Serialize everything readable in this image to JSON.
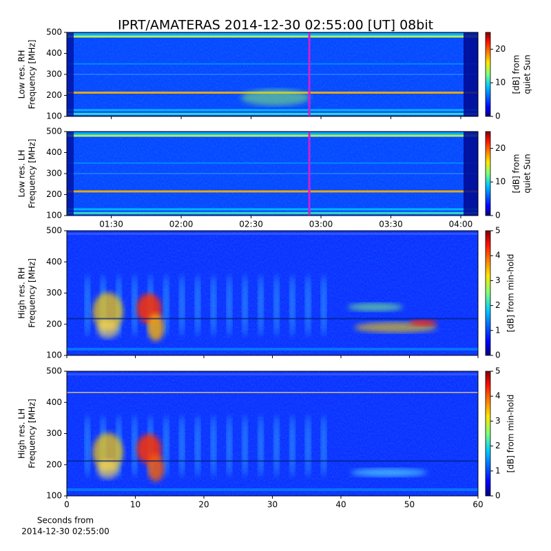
{
  "title": "IPRT/AMATERAS 2014-12-30 02:55:00 [UT]   08bit",
  "chart_data": [
    {
      "type": "heatmap",
      "ylabel": [
        "Low res. RH",
        "Frequency [MHz]"
      ],
      "ylim": [
        100,
        500
      ],
      "yticks": [
        100,
        200,
        300,
        400,
        500
      ],
      "xlim": [
        70.9,
        247.4
      ],
      "colormap": "jet",
      "marker": {
        "x": 175,
        "color": "#d020d0"
      },
      "colorbar": {
        "label": [
          "[dB] from",
          "quiet Sun"
        ],
        "lim": [
          0,
          25
        ],
        "ticks": [
          0,
          10,
          20
        ]
      }
    },
    {
      "type": "heatmap",
      "ylabel": [
        "Low res. LH",
        "Frequency [MHz]"
      ],
      "ylim": [
        100,
        500
      ],
      "yticks": [
        100,
        200,
        300,
        400,
        500
      ],
      "xlim": [
        70.9,
        247.4
      ],
      "colormap": "jet",
      "marker": {
        "x": 175,
        "color": "#d020d0"
      },
      "xticks": [
        {
          "value": 90,
          "label": "01:30"
        },
        {
          "value": 120,
          "label": "02:00"
        },
        {
          "value": 150,
          "label": "02:30"
        },
        {
          "value": 180,
          "label": "03:00"
        },
        {
          "value": 210,
          "label": "03:30"
        },
        {
          "value": 240,
          "label": "04:00"
        }
      ],
      "colorbar": {
        "label": [
          "[dB] from",
          "quiet Sun"
        ],
        "lim": [
          0,
          25
        ],
        "ticks": [
          0,
          10,
          20
        ]
      }
    },
    {
      "type": "heatmap",
      "ylabel": [
        "High res. RH",
        "Frequency [MHz]"
      ],
      "ylim": [
        100,
        500
      ],
      "yticks": [
        100,
        200,
        300,
        400,
        500
      ],
      "xlim": [
        0,
        60
      ],
      "colormap": "jet",
      "colorbar": {
        "label": [
          "[dB] from min-hold"
        ],
        "lim": [
          0,
          5
        ],
        "ticks": [
          0,
          1,
          2,
          3,
          4,
          5
        ]
      }
    },
    {
      "type": "heatmap",
      "ylabel": [
        "High res. LH",
        "Frequency [MHz]"
      ],
      "ylim": [
        100,
        500
      ],
      "yticks": [
        100,
        200,
        300,
        400,
        500
      ],
      "xlim": [
        0,
        60
      ],
      "xticks": [
        0,
        10,
        20,
        30,
        40,
        50,
        60
      ],
      "colormap": "jet",
      "xlabel": [
        "Seconds from",
        "2014-12-30 02:55:00"
      ],
      "colorbar": {
        "label": [
          "[dB] from min-hold"
        ],
        "lim": [
          0,
          5
        ],
        "ticks": [
          0,
          1,
          2,
          3,
          4,
          5
        ]
      }
    }
  ]
}
